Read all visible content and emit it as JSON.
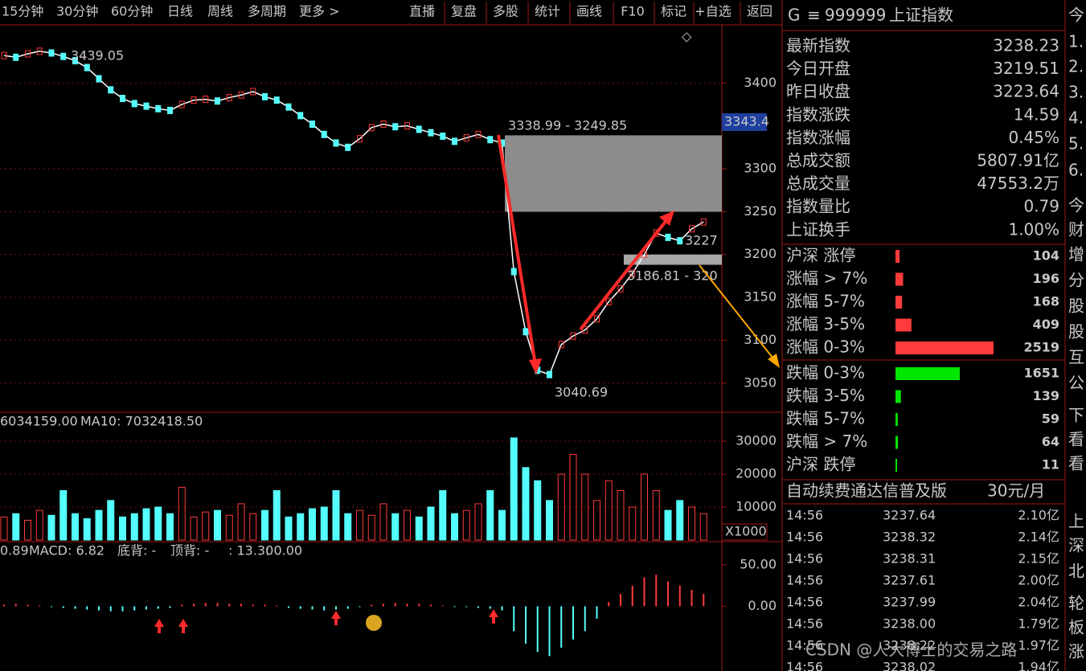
{
  "toolbar": {
    "periods": [
      "15分钟",
      "30分钟",
      "60分钟",
      "日线",
      "周线",
      "多周期",
      "更多 >"
    ],
    "active": 1,
    "buttons": [
      "直播",
      "复盘",
      "多股",
      "统计",
      "画线",
      "F10",
      "标记",
      "+自选",
      "返回"
    ]
  },
  "chart_data": [
    {
      "type": "line",
      "color": "#ffffff",
      "values": [
        3432,
        3430,
        3434,
        3437,
        3435,
        3431,
        3426,
        3418,
        3405,
        3392,
        3382,
        3376,
        3373,
        3370,
        3368,
        3375,
        3380,
        3381,
        3379,
        3383,
        3386,
        3390,
        3384,
        3380,
        3372,
        3362,
        3352,
        3340,
        3330,
        3325,
        3335,
        3348,
        3352,
        3349,
        3350,
        3346,
        3342,
        3338,
        3332,
        3336,
        3340,
        3334,
        3330,
        3180,
        3110,
        3065,
        3060,
        3095,
        3105,
        3112,
        3125,
        3145,
        3160,
        3178,
        3200,
        3225,
        3220,
        3216,
        3230,
        3238
      ],
      "ylim": [
        3017,
        3464
      ],
      "yticks": [
        3050,
        3100,
        3150,
        3200,
        3250,
        3300,
        3400
      ],
      "grid": true,
      "current_label": "3343.4",
      "zones": [
        [
          3338.99,
          3249.85
        ],
        [
          3200,
          3188
        ]
      ],
      "annotations": [
        "3439.05",
        "3338.99 - 3249.85",
        "3227",
        "3186.81 - 320",
        "3040.69"
      ]
    },
    {
      "type": "bar",
      "legend": [
        "6034159.00",
        "MA10: 7032418.50"
      ],
      "unit_label": "X1000",
      "values": [
        7000,
        8000,
        6000,
        9000,
        7500,
        15000,
        8000,
        6500,
        9000,
        12000,
        7000,
        8000,
        9500,
        10000,
        8000,
        16000,
        7000,
        8500,
        9000,
        7500,
        11000,
        8000,
        9000,
        15000,
        7000,
        8000,
        9500,
        10000,
        15000,
        8000,
        9000,
        7500,
        11000,
        8000,
        9000,
        7000,
        10000,
        15000,
        8000,
        9000,
        11000,
        15000,
        9000,
        31000,
        22000,
        18000,
        12000,
        20000,
        26000,
        20000,
        12000,
        18000,
        15000,
        10000,
        20000,
        15000,
        9000,
        12000,
        10000,
        8000
      ],
      "ylim": [
        0,
        38300
      ],
      "yticks": [
        10000,
        20000,
        30000
      ],
      "grid": true
    },
    {
      "type": "bar",
      "legend": [
        "0.89",
        "MACD: 6.82",
        "底背: -",
        "顶背: -",
        ": 13.30",
        ": 0.00"
      ],
      "values": [
        2,
        3,
        2,
        1,
        -1,
        -2,
        -3,
        -4,
        -5,
        -6,
        -6,
        -5,
        -4,
        -3,
        -2,
        2,
        3,
        4,
        4,
        3,
        3,
        2,
        2,
        1,
        -2,
        -3,
        -4,
        -5,
        -4,
        -3,
        -1,
        2,
        3,
        4,
        3,
        3,
        2,
        1,
        -1,
        -1,
        -2,
        -3,
        -5,
        -30,
        -45,
        -55,
        -60,
        -50,
        -40,
        -30,
        -15,
        5,
        15,
        25,
        35,
        38,
        30,
        25,
        20,
        15
      ],
      "ylim": [
        -78,
        76
      ],
      "yticks": [
        {
          "value": 0,
          "label": "0.00"
        },
        {
          "value": 50,
          "label": "50.00"
        }
      ]
    }
  ],
  "quote": {
    "flag": "G",
    "menu": "≡",
    "code": "999999",
    "name": "上证指数",
    "rows": [
      {
        "label": "最新指数",
        "value": "3238.23",
        "color": "#ff3b3b"
      },
      {
        "label": "今日开盘",
        "value": "3219.51",
        "color": "#00e600"
      },
      {
        "label": "昨日收盘",
        "value": "3223.64",
        "color": "#ffffff"
      },
      {
        "label": "指数涨跌",
        "value": "14.59",
        "color": "#ff3b3b"
      },
      {
        "label": "指数涨幅",
        "value": "0.45%",
        "color": "#ff3b3b"
      },
      {
        "label": "总成交额",
        "value": "5807.91亿",
        "color": "#e6c830"
      },
      {
        "label": "总成交量",
        "value": "47553.2万",
        "color": "#e6c830"
      },
      {
        "label": "指数量比",
        "value": "0.79",
        "color": "#e6c830"
      },
      {
        "label": "上证换手",
        "value": "1.00%",
        "color": "#ffffff"
      }
    ],
    "breadth": [
      {
        "label": "沪深 涨停",
        "count": 104,
        "color": "#ff3b3b"
      },
      {
        "label": "涨幅 > 7%",
        "count": 196,
        "color": "#ff3b3b"
      },
      {
        "label": "涨幅 5-7%",
        "count": 168,
        "color": "#ff3b3b"
      },
      {
        "label": "涨幅 3-5%",
        "count": 409,
        "color": "#ff3b3b"
      },
      {
        "label": "涨幅 0-3%",
        "count": 2519,
        "color": "#ff3b3b"
      },
      {
        "label": "跌幅 0-3%",
        "count": 1651,
        "color": "#00e600"
      },
      {
        "label": "跌幅 3-5%",
        "count": 139,
        "color": "#00e600"
      },
      {
        "label": "跌幅 5-7%",
        "count": 59,
        "color": "#00e600"
      },
      {
        "label": "跌幅 > 7%",
        "count": 64,
        "color": "#00e600"
      },
      {
        "label": "沪深 跌停",
        "count": 11,
        "color": "#00e600"
      }
    ],
    "banner": "自动续费通达信普及版",
    "banner_price": "30元/月",
    "ticks": [
      [
        "14:56",
        "3237.64",
        "2.10亿"
      ],
      [
        "14:56",
        "3238.32",
        "2.14亿"
      ],
      [
        "14:56",
        "3238.31",
        "2.15亿"
      ],
      [
        "14:56",
        "3237.61",
        "2.00亿"
      ],
      [
        "14:56",
        "3237.99",
        "2.04亿"
      ],
      [
        "14:56",
        "3238.00",
        "1.79亿"
      ],
      [
        "14:56",
        "3238.22",
        "1.97亿"
      ],
      [
        "14:56",
        "3238.02",
        "1.94亿"
      ]
    ]
  },
  "side_column": [
    "今",
    "1.",
    "2.",
    "3.",
    "4.",
    "5.",
    "6.",
    "今",
    "财",
    "增",
    "分",
    "股",
    "股",
    "互",
    "公",
    "下",
    "看",
    "看",
    "上",
    "深",
    "北",
    "轮",
    "板",
    "涨"
  ],
  "watermark": "CSDN @人大博士的交易之路"
}
